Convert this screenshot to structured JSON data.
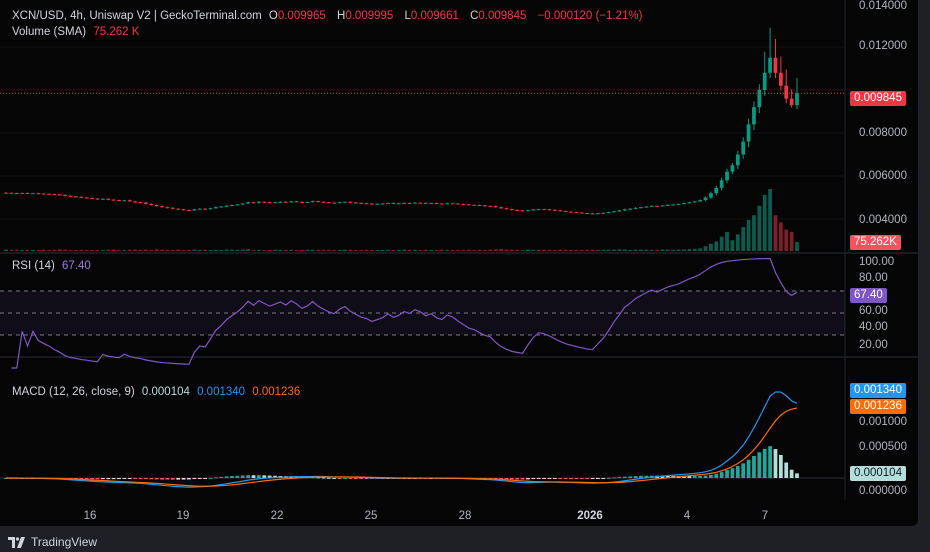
{
  "header": {
    "symbol": "XCN/USD, 4h, Uniswap V2 | GeckoTerminal.com",
    "o_label": "O",
    "o": "0.009965",
    "h_label": "H",
    "h": "0.009995",
    "l_label": "L",
    "l": "0.009661",
    "c_label": "C",
    "c": "0.009845",
    "change": "−0.000120 (−1.21%)"
  },
  "volume_legend": {
    "label": "Volume (SMA)",
    "value": "75.262 K"
  },
  "rsi_legend": {
    "label": "RSI (14)",
    "value": "67.40"
  },
  "macd_legend": {
    "label": "MACD (12, 26, close, 9)",
    "hist": "0.000104",
    "macd": "0.001340",
    "signal": "0.001236"
  },
  "price_axis": [
    "0.014000",
    "0.012000",
    "0.008000",
    "0.006000",
    "0.004000"
  ],
  "rsi_axis": [
    "100.00",
    "80.00",
    "60.00",
    "40.00",
    "20.00"
  ],
  "macd_axis": [
    "0.001000",
    "0.000500",
    "0.000000"
  ],
  "tags": {
    "price": "0.009845",
    "volume": "75.262K",
    "rsi": "67.40",
    "macd": "0.001340",
    "signal": "0.001236",
    "hist": "0.000104"
  },
  "time_axis": [
    "16",
    "19",
    "22",
    "25",
    "28",
    "2026",
    "4",
    "7"
  ],
  "footer": {
    "brand": "TradingView"
  },
  "colors": {
    "up": "#089981",
    "down": "#f23645",
    "rsi": "#7e57c2",
    "macd": "#2196f3",
    "signal": "#ff6d00",
    "hist": "#26a69a"
  },
  "chart_data": {
    "type": "candlestick",
    "title": "XCN/USD, 4h, Uniswap V2",
    "ylim": [
      0.0035,
      0.0142
    ],
    "closes": [
      0.00522,
      0.00521,
      0.0052,
      0.00521,
      0.00519,
      0.0052,
      0.00518,
      0.00517,
      0.00516,
      0.00514,
      0.00512,
      0.00508,
      0.00505,
      0.00503,
      0.005,
      0.00498,
      0.00495,
      0.00492,
      0.00494,
      0.0049,
      0.00488,
      0.00486,
      0.00487,
      0.00482,
      0.00478,
      0.00476,
      0.0047,
      0.00465,
      0.0046,
      0.00455,
      0.00452,
      0.00448,
      0.00445,
      0.00442,
      0.0044,
      0.00445,
      0.00448,
      0.00446,
      0.0045,
      0.00455,
      0.00458,
      0.00462,
      0.00465,
      0.00468,
      0.00472,
      0.00478,
      0.00475,
      0.0048,
      0.00478,
      0.00476,
      0.00478,
      0.0048,
      0.00478,
      0.00482,
      0.0048,
      0.00477,
      0.00479,
      0.00483,
      0.0048,
      0.00478,
      0.00476,
      0.00475,
      0.00478,
      0.0048,
      0.00477,
      0.00475,
      0.00473,
      0.00472,
      0.0047,
      0.00471,
      0.00472,
      0.00474,
      0.00472,
      0.00473,
      0.00475,
      0.00474,
      0.00476,
      0.00475,
      0.00473,
      0.00474,
      0.00472,
      0.00471,
      0.00473,
      0.00472,
      0.0047,
      0.00468,
      0.00466,
      0.00465,
      0.00463,
      0.00461,
      0.0046,
      0.00455,
      0.0045,
      0.00446,
      0.00442,
      0.0044,
      0.00438,
      0.00441,
      0.00444,
      0.00446,
      0.00445,
      0.00443,
      0.0044,
      0.00437,
      0.00434,
      0.00432,
      0.0043,
      0.00428,
      0.00426,
      0.00425,
      0.00427,
      0.00429,
      0.00432,
      0.00436,
      0.0044,
      0.00445,
      0.00448,
      0.00452,
      0.00455,
      0.00458,
      0.00461,
      0.0046,
      0.00463,
      0.00466,
      0.00468,
      0.0047,
      0.00474,
      0.00478,
      0.00482,
      0.00488,
      0.005,
      0.0052,
      0.00545,
      0.0058,
      0.0062,
      0.0065,
      0.007,
      0.0076,
      0.0084,
      0.0092,
      0.01,
      0.0108,
      0.0115,
      0.0108,
      0.0102,
      0.0096,
      0.0093,
      0.00985
    ],
    "volumes_k": [
      12,
      8,
      10,
      6,
      9,
      7,
      8,
      11,
      9,
      10,
      14,
      12,
      9,
      8,
      10,
      7,
      8,
      9,
      6,
      10,
      12,
      9,
      8,
      11,
      13,
      10,
      12,
      9,
      14,
      11,
      10,
      9,
      12,
      8,
      10,
      12,
      9,
      11,
      8,
      10,
      9,
      13,
      11,
      10,
      12,
      15,
      9,
      10,
      8,
      9,
      11,
      10,
      9,
      10,
      8,
      9,
      11,
      10,
      8,
      9,
      10,
      8,
      9,
      11,
      10,
      9,
      8,
      10,
      9,
      8,
      9,
      10,
      8,
      9,
      11,
      10,
      9,
      8,
      10,
      9,
      8,
      10,
      9,
      8,
      9,
      10,
      11,
      9,
      10,
      9,
      12,
      14,
      16,
      12,
      11,
      10,
      9,
      12,
      10,
      9,
      11,
      10,
      9,
      12,
      10,
      9,
      8,
      9,
      10,
      11,
      9,
      10,
      11,
      12,
      14,
      13,
      10,
      12,
      11,
      10,
      9,
      10,
      12,
      11,
      10,
      12,
      13,
      15,
      18,
      22,
      40,
      60,
      80,
      120,
      160,
      90,
      140,
      200,
      260,
      300,
      380,
      470,
      520,
      300,
      240,
      180,
      160,
      75
    ]
  }
}
